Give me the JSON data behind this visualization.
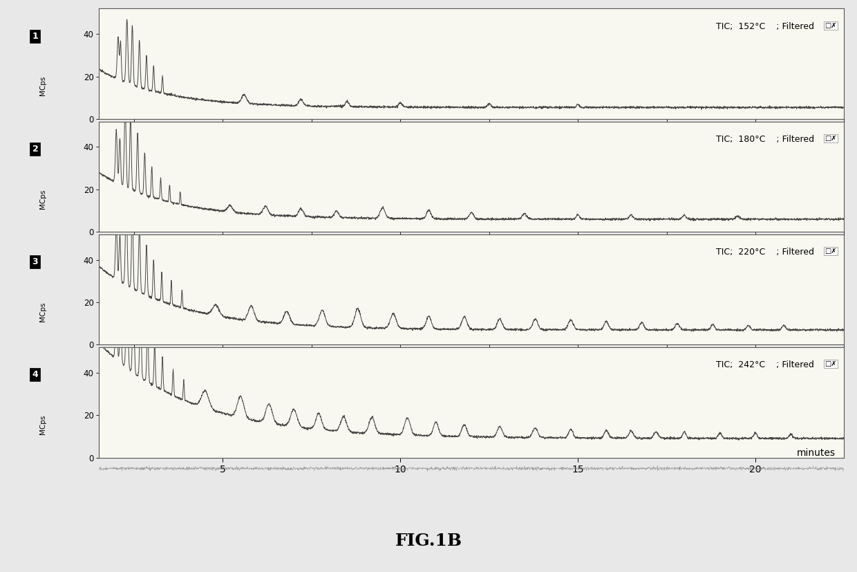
{
  "panels": [
    {
      "label": "1",
      "temp": "152",
      "ylim": [
        0,
        52
      ],
      "yticks": [
        0,
        20,
        40
      ]
    },
    {
      "label": "2",
      "temp": "180",
      "ylim": [
        0,
        52
      ],
      "yticks": [
        0,
        20,
        40
      ]
    },
    {
      "label": "3",
      "temp": "220",
      "ylim": [
        0,
        52
      ],
      "yticks": [
        0,
        20,
        40
      ]
    },
    {
      "label": "4",
      "temp": "242",
      "ylim": [
        0,
        52
      ],
      "yticks": [
        0,
        20,
        40
      ]
    }
  ],
  "xlim": [
    1.5,
    22.5
  ],
  "xlabel": "minutes",
  "ylabel_unit": "MCps",
  "background_color": "#f0f0f0",
  "panel_bg": "#f5f5f5",
  "line_color": "#333333",
  "fig_title": "FIG.1B",
  "xticks": [
    5,
    10,
    15,
    20
  ]
}
